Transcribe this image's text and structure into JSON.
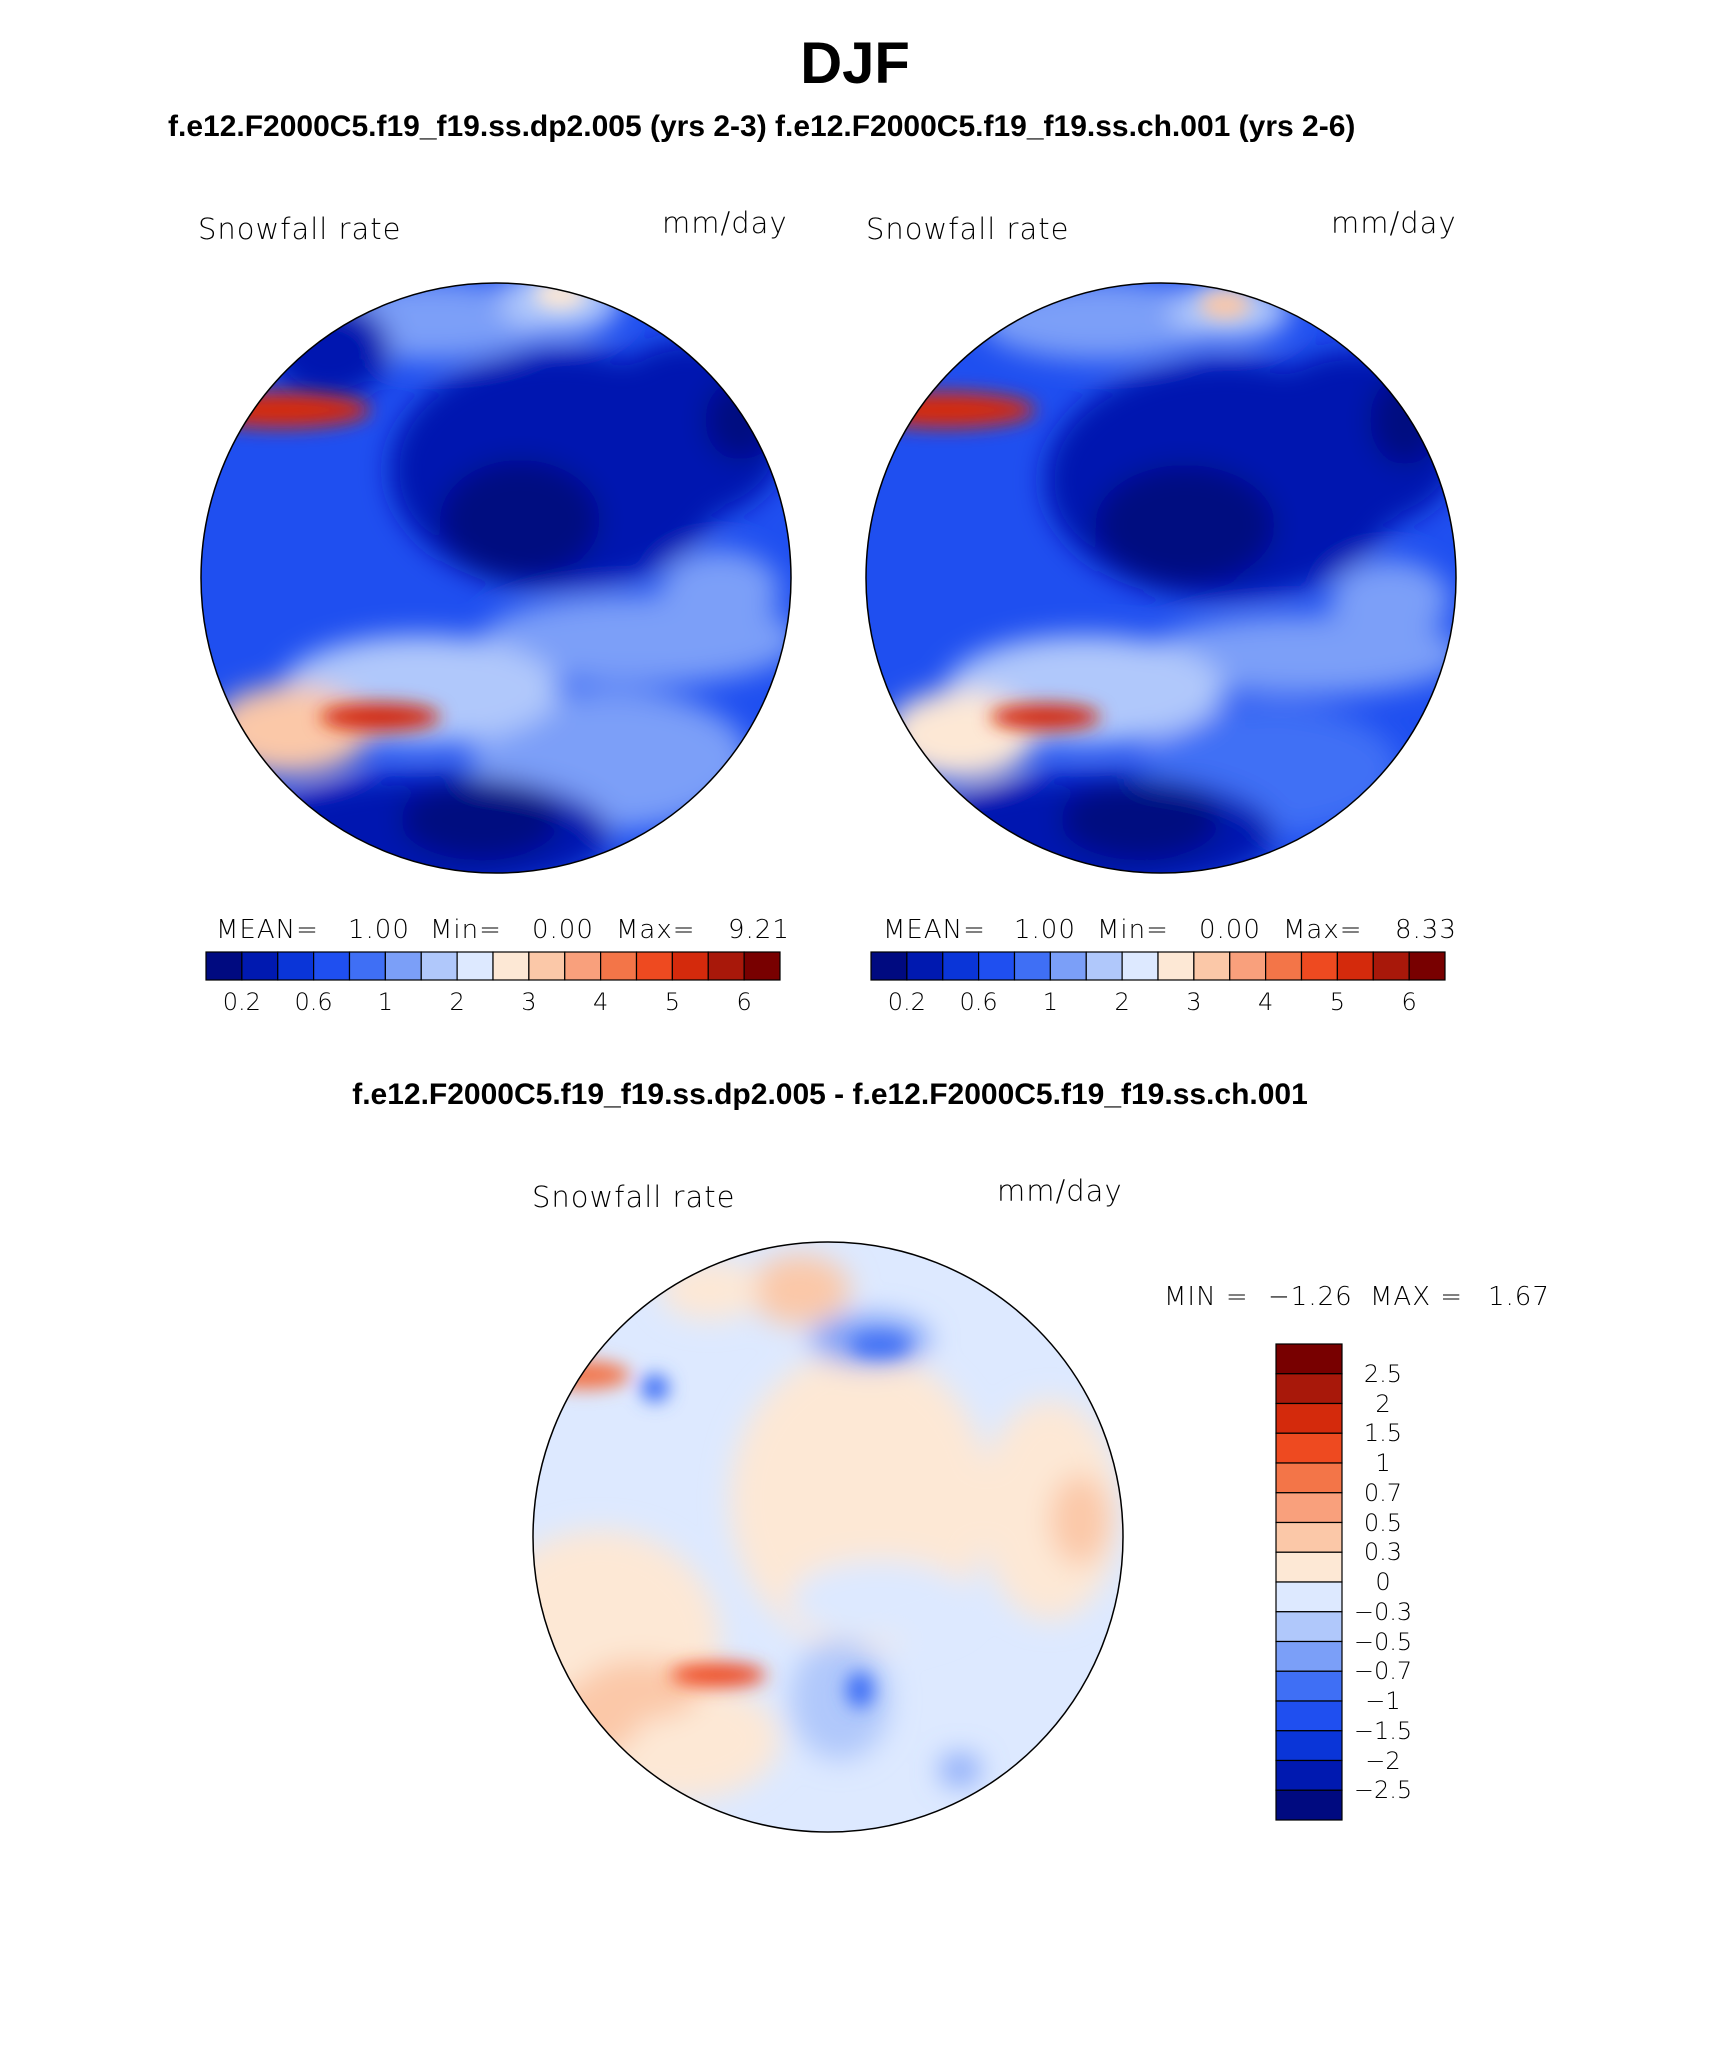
{
  "title": "DJF",
  "subtitle": "f.e12.F2000C5.f19_f19.ss.dp2.005 (yrs 2-3)   f.e12.F2000C5.f19_f19.ss.ch.001 (yrs 2-6)",
  "panels": [
    {
      "variable": "Snowfall rate",
      "units": "mm/day",
      "mean_label": "MEAN=",
      "mean": "1.00",
      "min_label": "Min=",
      "min": "0.00",
      "max_label": "Max=",
      "max": "9.21",
      "colorbar_ticks": [
        "0.2",
        "0.6",
        "1",
        "2",
        "3",
        "4",
        "5",
        "6"
      ]
    },
    {
      "variable": "Snowfall rate",
      "units": "mm/day",
      "mean_label": "MEAN=",
      "mean": "1.00",
      "min_label": "Min=",
      "min": "0.00",
      "max_label": "Max=",
      "max": "8.33",
      "colorbar_ticks": [
        "0.2",
        "0.6",
        "1",
        "2",
        "3",
        "4",
        "5",
        "6"
      ]
    }
  ],
  "difference": {
    "title": "f.e12.F2000C5.f19_f19.ss.dp2.005 - f.e12.F2000C5.f19_f19.ss.ch.001",
    "variable": "Snowfall rate",
    "units": "mm/day",
    "min_label": "MIN =",
    "min": "−1.26",
    "max_label": "MAX =",
    "max": "1.67",
    "colorbar_labels": [
      "2.5",
      "2",
      "1.5",
      "1",
      "0.7",
      "0.5",
      "0.3",
      "0",
      "−0.3",
      "−0.5",
      "−0.7",
      "−1",
      "−1.5",
      "−2",
      "−2.5"
    ]
  },
  "colors": {
    "abs_scale": [
      "#000a80",
      "#0019b0",
      "#0a35d8",
      "#1f4ff0",
      "#3f6ff5",
      "#7b9ff8",
      "#b0c8fb",
      "#dde9ff",
      "#fde8d5",
      "#fbc8a8",
      "#f9a07c",
      "#f37548",
      "#ee4a20",
      "#d42a0c",
      "#a8180a",
      "#780000"
    ],
    "diff_scale": [
      "#780000",
      "#a8180a",
      "#d42a0c",
      "#ee4a20",
      "#f37548",
      "#f9a07c",
      "#fbc8a8",
      "#fde8d5",
      "#dde9ff",
      "#b0c8fb",
      "#7b9ff8",
      "#3f6ff5",
      "#1f4ff0",
      "#0a35d8",
      "#0019b0",
      "#000a80"
    ],
    "coast": "#000000"
  }
}
